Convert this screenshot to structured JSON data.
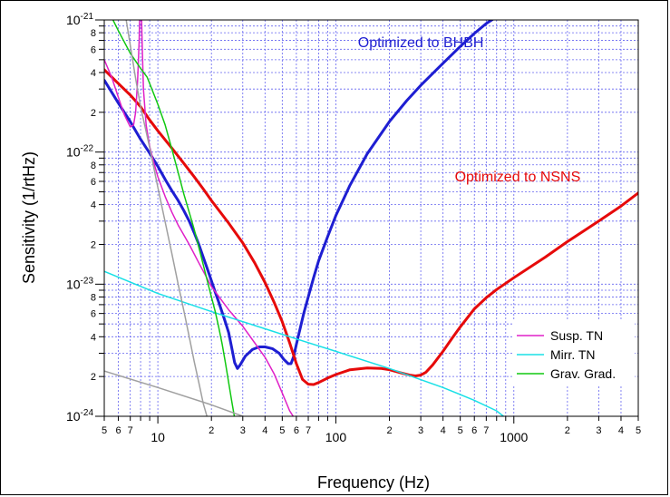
{
  "chart_data": {
    "type": "line",
    "xlabel": "Frequency (Hz)",
    "ylabel": "Sensitivity (1/rtHz)",
    "xscale": "log",
    "yscale": "log",
    "xlim": [
      5,
      5000
    ],
    "ylim": [
      1e-24,
      1e-21
    ],
    "grid": true,
    "x_major_ticks": [
      {
        "v": 10,
        "label": "10"
      },
      {
        "v": 100,
        "label": "100"
      },
      {
        "v": 1000,
        "label": "1000"
      }
    ],
    "x_minor_ticks": [
      {
        "v": 5,
        "label": "5"
      },
      {
        "v": 6,
        "label": "6"
      },
      {
        "v": 7,
        "label": "7"
      },
      {
        "v": 8,
        "label": ""
      },
      {
        "v": 9,
        "label": ""
      },
      {
        "v": 20,
        "label": "2"
      },
      {
        "v": 30,
        "label": "3"
      },
      {
        "v": 40,
        "label": "4"
      },
      {
        "v": 50,
        "label": "5"
      },
      {
        "v": 60,
        "label": "6"
      },
      {
        "v": 70,
        "label": "7"
      },
      {
        "v": 80,
        "label": ""
      },
      {
        "v": 90,
        "label": ""
      },
      {
        "v": 200,
        "label": "2"
      },
      {
        "v": 300,
        "label": "3"
      },
      {
        "v": 400,
        "label": "4"
      },
      {
        "v": 500,
        "label": "5"
      },
      {
        "v": 600,
        "label": "6"
      },
      {
        "v": 700,
        "label": "7"
      },
      {
        "v": 800,
        "label": ""
      },
      {
        "v": 900,
        "label": ""
      },
      {
        "v": 2000,
        "label": "2"
      },
      {
        "v": 3000,
        "label": "3"
      },
      {
        "v": 4000,
        "label": "4"
      },
      {
        "v": 5000,
        "label": "5"
      }
    ],
    "y_major_ticks": [
      {
        "v": 1e-24,
        "base": "10",
        "exp": "-24"
      },
      {
        "v": 1e-23,
        "base": "10",
        "exp": "-23"
      },
      {
        "v": 1e-22,
        "base": "10",
        "exp": "-22"
      },
      {
        "v": 1e-21,
        "base": "10",
        "exp": "-21"
      }
    ],
    "y_minor_ticks": [
      {
        "v": 2e-24,
        "label": "2"
      },
      {
        "v": 3e-24,
        "label": ""
      },
      {
        "v": 4e-24,
        "label": "4"
      },
      {
        "v": 5e-24,
        "label": ""
      },
      {
        "v": 6e-24,
        "label": "6"
      },
      {
        "v": 7e-24,
        "label": ""
      },
      {
        "v": 8e-24,
        "label": "8"
      },
      {
        "v": 9e-24,
        "label": ""
      },
      {
        "v": 2e-23,
        "label": "2"
      },
      {
        "v": 3e-23,
        "label": ""
      },
      {
        "v": 4e-23,
        "label": "4"
      },
      {
        "v": 5e-23,
        "label": ""
      },
      {
        "v": 6e-23,
        "label": "6"
      },
      {
        "v": 7e-23,
        "label": ""
      },
      {
        "v": 8e-23,
        "label": "8"
      },
      {
        "v": 9e-23,
        "label": ""
      },
      {
        "v": 2e-22,
        "label": "2"
      },
      {
        "v": 3e-22,
        "label": ""
      },
      {
        "v": 4e-22,
        "label": "4"
      },
      {
        "v": 5e-22,
        "label": ""
      },
      {
        "v": 6e-22,
        "label": "6"
      },
      {
        "v": 7e-22,
        "label": ""
      },
      {
        "v": 8e-22,
        "label": "8"
      },
      {
        "v": 9e-22,
        "label": ""
      }
    ],
    "series": [
      {
        "key": "bhbh",
        "color": "#1e1ed2",
        "width": 3,
        "points": [
          [
            5,
            3.5e-22
          ],
          [
            6,
            2.35e-22
          ],
          [
            7,
            1.7e-22
          ],
          [
            8,
            1.25e-22
          ],
          [
            9,
            9.8e-23
          ],
          [
            10,
            7.8e-23
          ],
          [
            11,
            6.2e-23
          ],
          [
            12,
            5.1e-23
          ],
          [
            13,
            4.3e-23
          ],
          [
            14,
            3.6e-23
          ],
          [
            15,
            3e-23
          ],
          [
            16,
            2.45e-23
          ],
          [
            17,
            2e-23
          ],
          [
            18,
            1.6e-23
          ],
          [
            19,
            1.3e-23
          ],
          [
            20,
            1.06e-23
          ],
          [
            21,
            8.7e-24
          ],
          [
            22,
            7.3e-24
          ],
          [
            23,
            6.1e-24
          ],
          [
            24,
            5.1e-24
          ],
          [
            25,
            4.3e-24
          ],
          [
            26,
            3.3e-24
          ],
          [
            27,
            2.55e-24
          ],
          [
            28,
            2.3e-24
          ],
          [
            29,
            2.45e-24
          ],
          [
            31,
            2.85e-24
          ],
          [
            34,
            3.2e-24
          ],
          [
            37,
            3.35e-24
          ],
          [
            40,
            3.35e-24
          ],
          [
            44,
            3.25e-24
          ],
          [
            48,
            3e-24
          ],
          [
            51,
            2.7e-24
          ],
          [
            54,
            2.5e-24
          ],
          [
            56,
            2.5e-24
          ],
          [
            58,
            2.85e-24
          ],
          [
            60,
            3.5e-24
          ],
          [
            63,
            4.6e-24
          ],
          [
            66,
            6e-24
          ],
          [
            70,
            8e-24
          ],
          [
            75,
            1.12e-23
          ],
          [
            80,
            1.5e-23
          ],
          [
            90,
            2.3e-23
          ],
          [
            100,
            3.3e-23
          ],
          [
            120,
            5.6e-23
          ],
          [
            150,
            9.7e-23
          ],
          [
            200,
            1.7e-22
          ],
          [
            250,
            2.45e-22
          ],
          [
            300,
            3.2e-22
          ],
          [
            400,
            4.7e-22
          ],
          [
            500,
            6.3e-22
          ],
          [
            600,
            7.9e-22
          ],
          [
            700,
            9.4e-22
          ],
          [
            770,
            1.02e-21
          ]
        ]
      },
      {
        "key": "nsns",
        "color": "#e60a0a",
        "width": 3,
        "points": [
          [
            5,
            4.2e-22
          ],
          [
            6,
            3.3e-22
          ],
          [
            7,
            2.7e-22
          ],
          [
            8,
            2.2e-22
          ],
          [
            9,
            1.75e-22
          ],
          [
            10,
            1.45e-22
          ],
          [
            12,
            1.07e-22
          ],
          [
            14,
            8.2e-23
          ],
          [
            16,
            6.5e-23
          ],
          [
            18,
            5.25e-23
          ],
          [
            20,
            4.3e-23
          ],
          [
            25,
            2.9e-23
          ],
          [
            30,
            2.05e-23
          ],
          [
            35,
            1.45e-23
          ],
          [
            40,
            1.03e-23
          ],
          [
            45,
            7.3e-24
          ],
          [
            50,
            5.2e-24
          ],
          [
            55,
            3.6e-24
          ],
          [
            60,
            2.5e-24
          ],
          [
            65,
            1.9e-24
          ],
          [
            70,
            1.75e-24
          ],
          [
            75,
            1.74e-24
          ],
          [
            80,
            1.8e-24
          ],
          [
            90,
            1.95e-24
          ],
          [
            100,
            2.07e-24
          ],
          [
            120,
            2.25e-24
          ],
          [
            150,
            2.32e-24
          ],
          [
            180,
            2.3e-24
          ],
          [
            200,
            2.25e-24
          ],
          [
            230,
            2.14e-24
          ],
          [
            260,
            2.05e-24
          ],
          [
            280,
            2.02e-24
          ],
          [
            300,
            2.05e-24
          ],
          [
            320,
            2.15e-24
          ],
          [
            350,
            2.45e-24
          ],
          [
            400,
            3.1e-24
          ],
          [
            450,
            3.9e-24
          ],
          [
            500,
            4.75e-24
          ],
          [
            600,
            6.5e-24
          ],
          [
            700,
            7.9e-24
          ],
          [
            800,
            9.1e-24
          ],
          [
            1000,
            1.12e-23
          ],
          [
            1500,
            1.6e-23
          ],
          [
            2000,
            2.1e-23
          ],
          [
            3000,
            3e-23
          ],
          [
            4000,
            3.9e-23
          ],
          [
            5000,
            4.9e-23
          ],
          [
            5400,
            5.4e-23
          ]
        ]
      },
      {
        "key": "susp",
        "color": "#e020c8",
        "width": 1.5,
        "points": [
          [
            5,
            5e-22
          ],
          [
            5.5,
            3.7e-22
          ],
          [
            6,
            2.6e-22
          ],
          [
            6.5,
            1.9e-22
          ],
          [
            7,
            1.55e-22
          ],
          [
            7.3,
            1.6e-22
          ],
          [
            7.5,
            2e-22
          ],
          [
            7.7,
            3.5e-22
          ],
          [
            7.85,
            7e-22
          ],
          [
            7.95,
            1.5e-21
          ]
        ]
      },
      {
        "key": "susp2",
        "color": "#e020c8",
        "width": 1.5,
        "points": [
          [
            8.05,
            1.5e-21
          ],
          [
            8.15,
            7e-22
          ],
          [
            8.3,
            3e-22
          ],
          [
            8.6,
            1.6e-22
          ],
          [
            9,
            1.1e-22
          ],
          [
            9.5,
            8.3e-23
          ],
          [
            10,
            6.5e-23
          ],
          [
            11,
            4.6e-23
          ],
          [
            12,
            3.5e-23
          ],
          [
            13,
            2.8e-23
          ],
          [
            15,
            2e-23
          ],
          [
            17,
            1.45e-23
          ],
          [
            20,
            9.6e-24
          ],
          [
            25,
            6.4e-24
          ],
          [
            30,
            4.8e-24
          ],
          [
            35,
            3.6e-24
          ],
          [
            40,
            2.8e-24
          ],
          [
            45,
            2.1e-24
          ],
          [
            50,
            1.5e-24
          ],
          [
            55,
            1.1e-24
          ],
          [
            59,
            9.5e-25
          ]
        ]
      },
      {
        "key": "mirr",
        "color": "#18e0e6",
        "width": 1.5,
        "points": [
          [
            5,
            1.25e-23
          ],
          [
            10,
            8.5e-24
          ],
          [
            20,
            6.2e-24
          ],
          [
            40,
            4.6e-24
          ],
          [
            60,
            3.85e-24
          ],
          [
            100,
            3.1e-24
          ],
          [
            200,
            2.3e-24
          ],
          [
            400,
            1.65e-24
          ],
          [
            600,
            1.32e-24
          ],
          [
            800,
            1.1e-24
          ],
          [
            900,
            9.7e-25
          ]
        ]
      },
      {
        "key": "grav",
        "color": "#10c810",
        "width": 1.5,
        "points": [
          [
            5.5,
            1.05e-21
          ],
          [
            6,
            8.3e-22
          ],
          [
            7,
            5.6e-22
          ],
          [
            8,
            4.3e-22
          ],
          [
            8.7,
            3.7e-22
          ],
          [
            9,
            3.3e-22
          ],
          [
            10,
            2.3e-22
          ],
          [
            11,
            1.6e-22
          ],
          [
            12,
            1.05e-22
          ],
          [
            13,
            7e-23
          ],
          [
            14,
            4.8e-23
          ],
          [
            15,
            3.5e-23
          ],
          [
            16,
            2.6e-23
          ],
          [
            17,
            1.9e-23
          ],
          [
            18,
            1.4e-23
          ],
          [
            19,
            1.05e-23
          ],
          [
            20,
            8e-24
          ],
          [
            21,
            6.2e-24
          ],
          [
            22,
            4.7e-24
          ],
          [
            23,
            3.5e-24
          ],
          [
            24,
            2.5e-24
          ],
          [
            25,
            1.8e-24
          ],
          [
            26,
            1.3e-24
          ],
          [
            27,
            9.7e-25
          ]
        ]
      },
      {
        "key": "gray1",
        "color": "#a0a0a0",
        "width": 1.5,
        "points": [
          [
            6.6,
            1.05e-21
          ],
          [
            7.5,
            3.6e-22
          ],
          [
            8,
            2.2e-22
          ],
          [
            9,
            1.08e-22
          ],
          [
            10,
            5.4e-23
          ],
          [
            11,
            2.95e-23
          ],
          [
            12,
            1.7e-23
          ],
          [
            13,
            1e-23
          ],
          [
            14,
            6.3e-24
          ],
          [
            15,
            4e-24
          ],
          [
            16,
            2.6e-24
          ],
          [
            17,
            1.8e-24
          ],
          [
            18,
            1.25e-24
          ],
          [
            19,
            9.7e-25
          ]
        ]
      },
      {
        "key": "gray2",
        "color": "#a0a0a0",
        "width": 1.5,
        "points": [
          [
            5,
            2.2e-24
          ],
          [
            10,
            1.65e-24
          ],
          [
            20,
            1.22e-24
          ],
          [
            30,
            1e-24
          ],
          [
            33,
            9.7e-25
          ]
        ]
      }
    ],
    "annotations": [
      {
        "key": "bhbh",
        "text": "Optimized to BHBH",
        "color": "#1e1ed2",
        "x": 300,
        "y": 6.2e-22
      },
      {
        "key": "nsns",
        "text": "Optimized to NSNS",
        "color": "#e60a0a",
        "x": 1050,
        "y": 6e-23
      }
    ],
    "legend": {
      "placement": "bottom-right",
      "entries": [
        {
          "label": "Susp. TN",
          "color": "#e020c8"
        },
        {
          "label": "Mirr. TN",
          "color": "#18e0e6"
        },
        {
          "label": "Grav. Grad.",
          "color": "#10c810"
        }
      ]
    }
  }
}
